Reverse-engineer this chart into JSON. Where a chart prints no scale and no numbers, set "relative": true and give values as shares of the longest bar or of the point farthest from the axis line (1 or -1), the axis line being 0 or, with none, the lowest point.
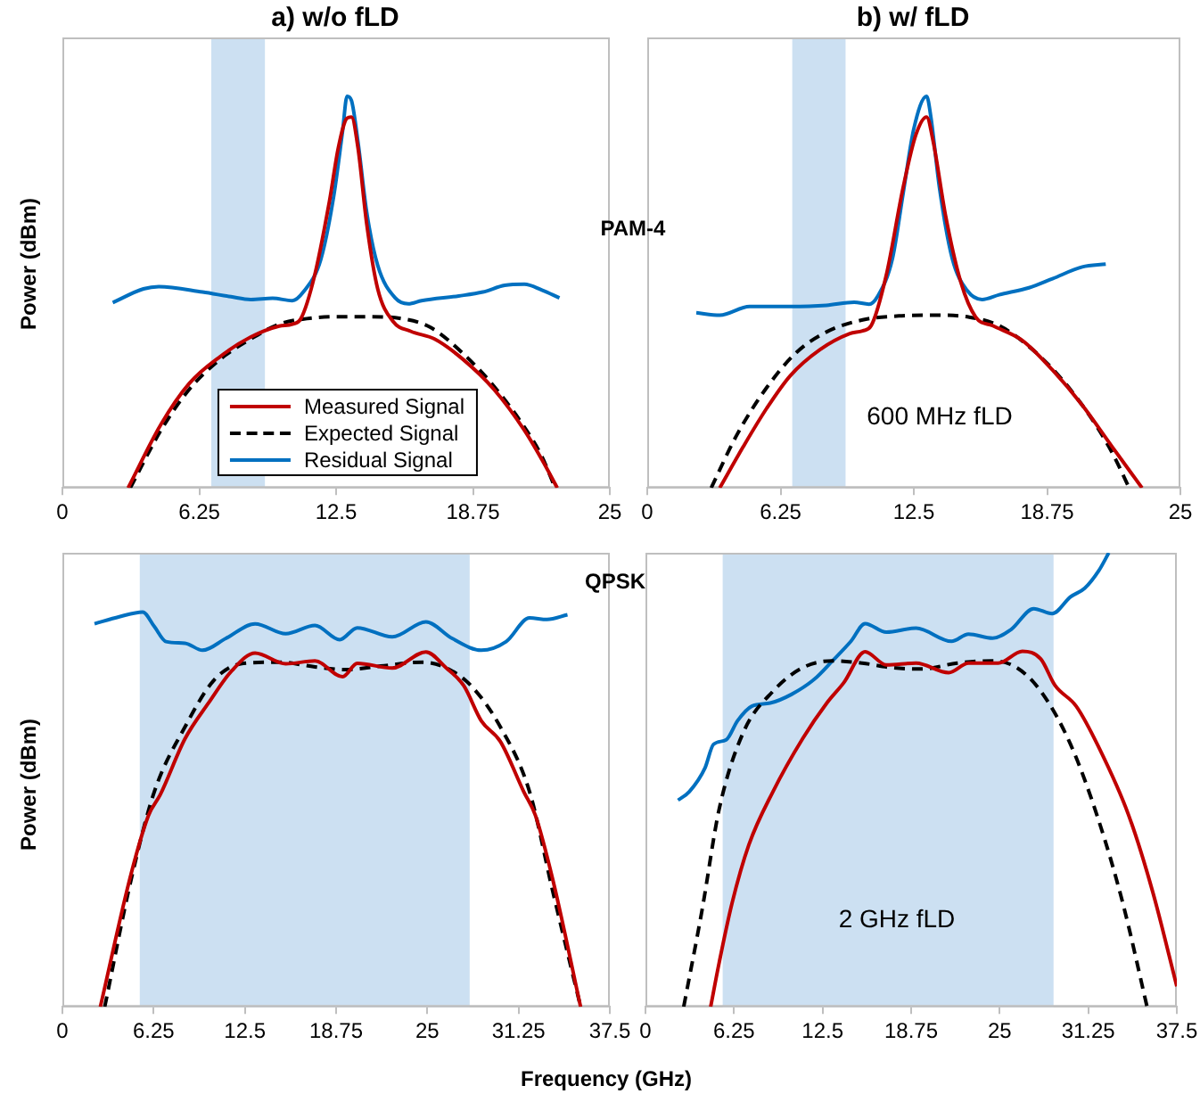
{
  "chart_data": [
    {
      "type": "line",
      "title": "a) w/o fLD",
      "ylabel": "Power (dBm)",
      "relative": true,
      "tick_labels": "x",
      "legend": "bottom",
      "marker": "none",
      "xlim": [
        0,
        25
      ],
      "xticks": [
        0,
        6.25,
        12.5,
        18.75,
        25
      ],
      "bands": [
        {
          "axis": "x",
          "from": 6.8,
          "to": 9.25,
          "color": "#cce0f2"
        }
      ],
      "series": [
        {
          "name": "Measured Signal",
          "color": "#c00000",
          "x": [
            3.0,
            4.5,
            5.8,
            7.2,
            8.6,
            9.9,
            10.5,
            10.9,
            11.5,
            12.2,
            12.6,
            13.0,
            13.2,
            13.5,
            13.9,
            14.4,
            15.1,
            15.9,
            17.0,
            18.3,
            19.7,
            21.1,
            21.9,
            22.6
          ],
          "values": [
            0,
            0.162,
            0.267,
            0.335,
            0.385,
            0.413,
            0.418,
            0.433,
            0.538,
            0.733,
            0.868,
            0.944,
            0.947,
            0.868,
            0.673,
            0.508,
            0.425,
            0.4,
            0.38,
            0.328,
            0.252,
            0.147,
            0.072,
            0
          ]
        },
        {
          "name": "Expected Signal",
          "color": "#000000",
          "line_style": "dashed",
          "x": [
            3.1,
            4.5,
            5.8,
            7.2,
            8.6,
            9.9,
            11.3,
            12.6,
            14.0,
            15.4,
            16.8,
            18.3,
            19.7,
            21.1,
            21.9,
            22.5
          ],
          "values": [
            0,
            0.147,
            0.252,
            0.328,
            0.38,
            0.418,
            0.433,
            0.437,
            0.437,
            0.433,
            0.41,
            0.343,
            0.26,
            0.155,
            0.08,
            0
          ]
        },
        {
          "name": "Residual Signal",
          "color": "#0070c0",
          "x": [
            2.3,
            3.7,
            4.4,
            6.4,
            7.7,
            8.6,
            9.6,
            10.5,
            11.0,
            11.8,
            12.4,
            12.8,
            13.0,
            13.2,
            13.5,
            13.9,
            14.4,
            15.2,
            15.8,
            16.4,
            18.1,
            19.2,
            20.2,
            21.1,
            21.9,
            22.7
          ],
          "values": [
            0.473,
            0.508,
            0.514,
            0.5,
            0.488,
            0.481,
            0.484,
            0.478,
            0.5,
            0.583,
            0.748,
            0.913,
            1,
            0.989,
            0.883,
            0.703,
            0.568,
            0.485,
            0.47,
            0.478,
            0.49,
            0.5,
            0.517,
            0.52,
            0.505,
            0.485
          ]
        }
      ]
    },
    {
      "type": "line",
      "title": "b) w/ fLD",
      "relative": true,
      "tick_labels": "x",
      "marker": "none",
      "xlim": [
        0,
        25
      ],
      "xticks": [
        0,
        6.25,
        12.5,
        18.75,
        25
      ],
      "annotations": [
        "PAM-4",
        "600 MHz fLD"
      ],
      "bands": [
        {
          "axis": "x",
          "from": 6.8,
          "to": 9.3,
          "color": "#cce0f2"
        }
      ],
      "series": [
        {
          "color": "#c00000",
          "x": [
            3.4,
            4.5,
            5.6,
            6.7,
            8.1,
            9.5,
            10.1,
            10.5,
            11.2,
            12.0,
            12.6,
            13.1,
            13.4,
            14.0,
            14.7,
            15.4,
            16.2,
            17.6,
            19.0,
            20.4,
            21.8,
            23.2
          ],
          "values": [
            0,
            0.105,
            0.203,
            0.286,
            0.353,
            0.394,
            0.401,
            0.414,
            0.541,
            0.767,
            0.902,
            0.947,
            0.887,
            0.692,
            0.526,
            0.436,
            0.414,
            0.376,
            0.301,
            0.211,
            0.105,
            0
          ]
        },
        {
          "color": "#000000",
          "line_style": "dashed",
          "x": [
            3.0,
            4.2,
            5.6,
            7.0,
            8.4,
            10.1,
            11.8,
            13.4,
            15.1,
            16.5,
            17.9,
            19.3,
            20.7,
            21.8,
            22.6
          ],
          "values": [
            0,
            0.135,
            0.256,
            0.346,
            0.398,
            0.429,
            0.439,
            0.441,
            0.436,
            0.414,
            0.361,
            0.286,
            0.188,
            0.09,
            0
          ]
        },
        {
          "color": "#0070c0",
          "x": [
            2.3,
            3.4,
            4.8,
            6.7,
            8.4,
            9.7,
            10.4,
            10.8,
            11.5,
            12.0,
            12.5,
            13.1,
            13.3,
            13.7,
            14.3,
            15.0,
            15.7,
            16.5,
            17.9,
            19.0,
            20.4,
            21.5
          ],
          "values": [
            0.447,
            0.441,
            0.463,
            0.463,
            0.466,
            0.474,
            0.469,
            0.489,
            0.586,
            0.752,
            0.917,
            1,
            0.947,
            0.767,
            0.586,
            0.504,
            0.481,
            0.493,
            0.511,
            0.534,
            0.564,
            0.571
          ]
        }
      ]
    },
    {
      "type": "line",
      "ylabel": "Power (dBm)",
      "xlabel": "Frequency (GHz)",
      "relative": true,
      "tick_labels": "x",
      "marker": "none",
      "xlim": [
        0,
        37.5
      ],
      "xticks": [
        0,
        6.25,
        12.5,
        18.75,
        25,
        31.25,
        37.5
      ],
      "bands": [
        {
          "axis": "x",
          "from": 5.3,
          "to": 27.9,
          "color": "#cce0f2"
        }
      ],
      "series": [
        {
          "color": "#c00000",
          "x": [
            2.6,
            4.7,
            5.9,
            6.7,
            8.4,
            10.0,
            11.6,
            13.2,
            15.3,
            17.3,
            19.2,
            20.2,
            22.6,
            24.9,
            26.3,
            27.5,
            28.7,
            30.0,
            31.6,
            32.4,
            33.6,
            35.5
          ],
          "values": [
            0,
            0.336,
            0.485,
            0.537,
            0.679,
            0.769,
            0.851,
            0.896,
            0.869,
            0.876,
            0.836,
            0.87,
            0.858,
            0.899,
            0.858,
            0.813,
            0.724,
            0.672,
            0.545,
            0.485,
            0.321,
            0
          ]
        },
        {
          "color": "#000000",
          "line_style": "dashed",
          "x": [
            2.9,
            4.7,
            6.3,
            8.4,
            10.4,
            12.4,
            14.9,
            17.3,
            19.4,
            21.8,
            24.7,
            26.3,
            28.0,
            30.0,
            32.0,
            33.6,
            35.5
          ],
          "values": [
            0,
            0.321,
            0.545,
            0.709,
            0.828,
            0.87,
            0.873,
            0.861,
            0.854,
            0.863,
            0.873,
            0.858,
            0.813,
            0.709,
            0.545,
            0.291,
            0
          ]
        },
        {
          "color": "#0070c0",
          "x": [
            2.2,
            3.9,
            5.5,
            6.3,
            7.1,
            8.4,
            9.6,
            11.2,
            13.2,
            15.3,
            17.3,
            19.0,
            20.2,
            22.6,
            24.9,
            26.7,
            28.7,
            30.4,
            32.0,
            33.2,
            34.6
          ],
          "values": [
            0.97,
            0.988,
            1,
            0.963,
            0.925,
            0.921,
            0.903,
            0.933,
            0.97,
            0.945,
            0.966,
            0.93,
            0.96,
            0.937,
            0.975,
            0.933,
            0.903,
            0.925,
            0.985,
            0.981,
            0.993
          ]
        }
      ]
    },
    {
      "type": "line",
      "relative": true,
      "tick_labels": "x",
      "marker": "none",
      "xlim": [
        0,
        37.5
      ],
      "xticks": [
        0,
        6.25,
        12.5,
        18.75,
        25,
        31.25,
        37.5
      ],
      "annotations": [
        "QPSK",
        "2 GHz fLD"
      ],
      "bands": [
        {
          "axis": "x",
          "from": 5.45,
          "to": 28.8,
          "color": "#cce0f2"
        }
      ],
      "series": [
        {
          "color": "#c00000",
          "x": [
            4.6,
            5.2,
            6.1,
            7.3,
            9.0,
            11.1,
            12.8,
            14.0,
            15.5,
            17.0,
            19.1,
            21.4,
            22.8,
            24.9,
            26.6,
            27.9,
            28.9,
            30.4,
            32.0,
            34.1,
            35.8,
            37.5
          ],
          "values": [
            0,
            0.097,
            0.227,
            0.357,
            0.474,
            0.591,
            0.669,
            0.714,
            0.782,
            0.753,
            0.757,
            0.736,
            0.757,
            0.757,
            0.783,
            0.766,
            0.708,
            0.662,
            0.571,
            0.422,
            0.253,
            0.045
          ]
        },
        {
          "color": "#000000",
          "line_style": "dashed",
          "x": [
            2.7,
            4.0,
            5.2,
            6.9,
            9.0,
            11.1,
            13.2,
            15.3,
            17.4,
            19.5,
            22.0,
            24.5,
            26.2,
            27.9,
            30.0,
            32.0,
            33.7,
            35.4
          ],
          "values": [
            0,
            0.214,
            0.435,
            0.604,
            0.695,
            0.747,
            0.762,
            0.757,
            0.747,
            0.744,
            0.757,
            0.762,
            0.747,
            0.695,
            0.578,
            0.409,
            0.227,
            0
          ]
        },
        {
          "color": "#0070c0",
          "x": [
            2.3,
            3.1,
            4.2,
            4.8,
            5.7,
            6.5,
            7.5,
            8.8,
            10.3,
            11.9,
            13.2,
            14.5,
            15.5,
            17.0,
            19.1,
            21.6,
            22.8,
            24.5,
            25.8,
            27.4,
            28.7,
            30.0,
            31.0,
            32.0,
            32.7
          ],
          "values": [
            0.455,
            0.474,
            0.526,
            0.578,
            0.588,
            0.63,
            0.662,
            0.669,
            0.688,
            0.721,
            0.762,
            0.805,
            0.844,
            0.825,
            0.834,
            0.805,
            0.821,
            0.812,
            0.831,
            0.877,
            0.866,
            0.903,
            0.922,
            0.961,
            1
          ]
        }
      ]
    }
  ]
}
